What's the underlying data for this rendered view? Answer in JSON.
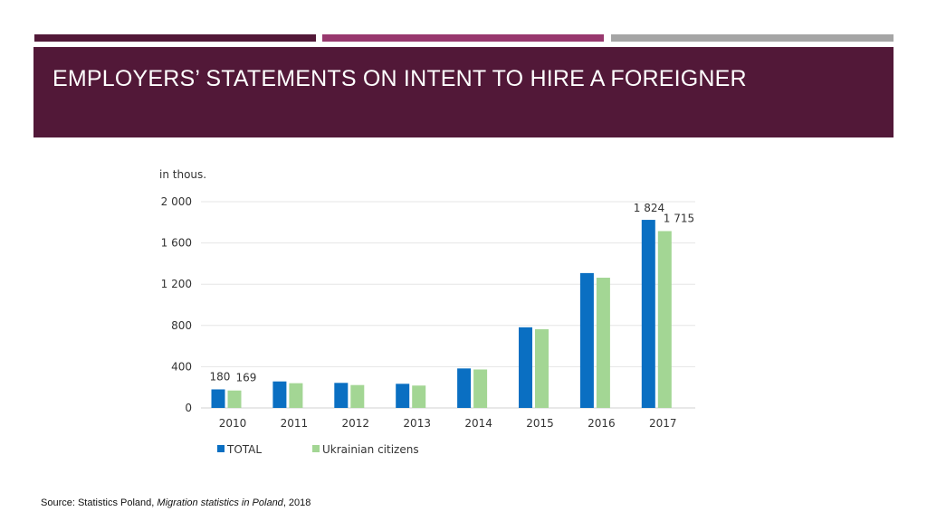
{
  "slide": {
    "title": "EMPLOYERS’ STATEMENTS ON INTENT TO HIRE A FOREIGNER",
    "colors": {
      "banner": "#521838",
      "stripe_1": "#521838",
      "stripe_2": "#98386e",
      "stripe_3": "#a5a5a5"
    }
  },
  "chart_data": {
    "type": "bar",
    "unit_label": "in thous.",
    "categories": [
      "2010",
      "2011",
      "2012",
      "2013",
      "2014",
      "2015",
      "2016",
      "2017"
    ],
    "series": [
      {
        "name": "TOTAL",
        "color": "#0a6fc2",
        "values": [
          180,
          257,
          243,
          234,
          383,
          782,
          1308,
          1824
        ]
      },
      {
        "name": "Ukrainian citizens",
        "color": "#a3d694",
        "values": [
          169,
          240,
          222,
          217,
          373,
          763,
          1263,
          1715
        ]
      }
    ],
    "data_labels": [
      {
        "series": 0,
        "category": "2010",
        "text": "180"
      },
      {
        "series": 1,
        "category": "2010",
        "text": "169"
      },
      {
        "series": 0,
        "category": "2017",
        "text": "1 824"
      },
      {
        "series": 1,
        "category": "2017",
        "text": "1 715"
      }
    ],
    "yticks": [
      0,
      400,
      800,
      1200,
      1600,
      2000
    ],
    "ytick_labels": [
      "0",
      "400",
      "800",
      "1 200",
      "1 600",
      "2 000"
    ],
    "ylim": [
      0,
      2000
    ],
    "grid": true,
    "legend_position": "bottom-left"
  },
  "source": {
    "prefix": "Source:  Statistics Poland, ",
    "publication": "Migration statistics in Poland",
    "suffix": ", 2018"
  }
}
